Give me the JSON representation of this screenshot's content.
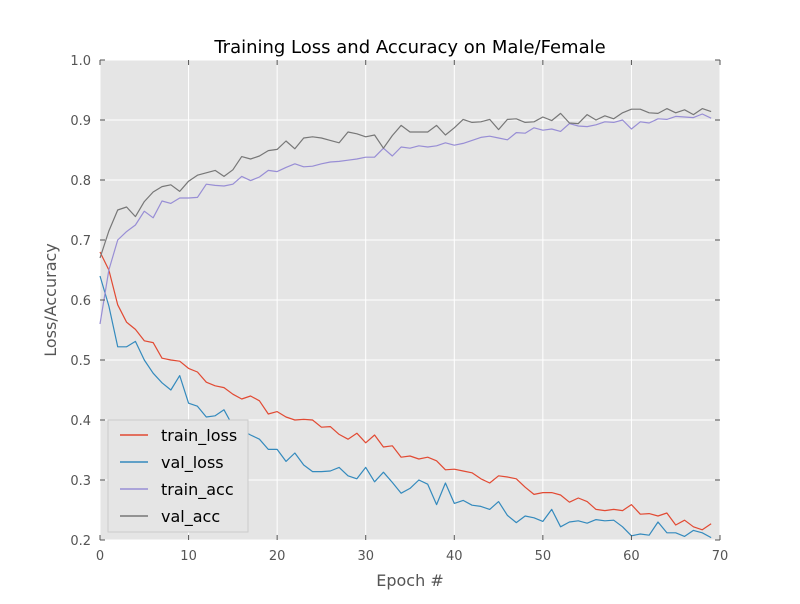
{
  "chart_data": {
    "type": "line",
    "title": "Training Loss and Accuracy on Male/Female",
    "xlabel": "Epoch #",
    "ylabel": "Loss/Accuracy",
    "xlim": [
      0,
      70
    ],
    "ylim": [
      0.2,
      1.0
    ],
    "x_ticks": [
      "0",
      "10",
      "20",
      "30",
      "40",
      "50",
      "60",
      "70"
    ],
    "y_ticks": [
      "0.2",
      "0.3",
      "0.4",
      "0.5",
      "0.6",
      "0.7",
      "0.8",
      "0.9",
      "1.0"
    ],
    "grid": true,
    "legend_position": "lower-left",
    "background": "#e5e5e5",
    "x": [
      0,
      1,
      2,
      3,
      4,
      5,
      6,
      7,
      8,
      9,
      10,
      11,
      12,
      13,
      14,
      15,
      16,
      17,
      18,
      19,
      20,
      21,
      22,
      23,
      24,
      25,
      26,
      27,
      28,
      29,
      30,
      31,
      32,
      33,
      34,
      35,
      36,
      37,
      38,
      39,
      40,
      41,
      42,
      43,
      44,
      45,
      46,
      47,
      48,
      49,
      50,
      51,
      52,
      53,
      54,
      55,
      56,
      57,
      58,
      59,
      60,
      61,
      62,
      63,
      64,
      65,
      66,
      67,
      68,
      69
    ],
    "series": [
      {
        "name": "train_loss",
        "color": "#e24a33",
        "values": [
          0.68,
          0.65,
          0.592,
          0.563,
          0.551,
          0.532,
          0.529,
          0.503,
          0.5,
          0.498,
          0.486,
          0.48,
          0.463,
          0.457,
          0.454,
          0.443,
          0.435,
          0.44,
          0.432,
          0.41,
          0.414,
          0.405,
          0.4,
          0.401,
          0.4,
          0.388,
          0.389,
          0.376,
          0.368,
          0.378,
          0.362,
          0.375,
          0.355,
          0.357,
          0.338,
          0.34,
          0.335,
          0.338,
          0.332,
          0.317,
          0.318,
          0.315,
          0.312,
          0.302,
          0.295,
          0.307,
          0.305,
          0.302,
          0.288,
          0.276,
          0.279,
          0.279,
          0.275,
          0.263,
          0.27,
          0.264,
          0.251,
          0.249,
          0.251,
          0.249,
          0.259,
          0.243,
          0.244,
          0.24,
          0.245,
          0.225,
          0.233,
          0.222,
          0.217,
          0.227
        ]
      },
      {
        "name": "val_loss",
        "color": "#348abd",
        "values": [
          0.64,
          0.59,
          0.522,
          0.522,
          0.531,
          0.5,
          0.478,
          0.462,
          0.45,
          0.474,
          0.428,
          0.423,
          0.405,
          0.407,
          0.417,
          0.39,
          0.383,
          0.375,
          0.368,
          0.351,
          0.351,
          0.331,
          0.345,
          0.325,
          0.314,
          0.314,
          0.315,
          0.321,
          0.307,
          0.302,
          0.321,
          0.297,
          0.313,
          0.296,
          0.278,
          0.286,
          0.3,
          0.293,
          0.259,
          0.295,
          0.261,
          0.266,
          0.258,
          0.256,
          0.251,
          0.264,
          0.241,
          0.229,
          0.24,
          0.237,
          0.231,
          0.251,
          0.222,
          0.23,
          0.232,
          0.228,
          0.234,
          0.232,
          0.233,
          0.222,
          0.207,
          0.21,
          0.208,
          0.23,
          0.212,
          0.212,
          0.206,
          0.216,
          0.212,
          0.204
        ]
      },
      {
        "name": "train_acc",
        "color": "#988ed5",
        "values": [
          0.56,
          0.65,
          0.7,
          0.714,
          0.725,
          0.748,
          0.737,
          0.765,
          0.761,
          0.77,
          0.77,
          0.771,
          0.793,
          0.791,
          0.79,
          0.793,
          0.806,
          0.799,
          0.805,
          0.816,
          0.814,
          0.821,
          0.827,
          0.822,
          0.823,
          0.827,
          0.83,
          0.831,
          0.833,
          0.835,
          0.838,
          0.838,
          0.853,
          0.84,
          0.855,
          0.853,
          0.857,
          0.855,
          0.857,
          0.862,
          0.858,
          0.861,
          0.866,
          0.871,
          0.873,
          0.87,
          0.867,
          0.879,
          0.878,
          0.887,
          0.883,
          0.885,
          0.881,
          0.894,
          0.89,
          0.889,
          0.892,
          0.897,
          0.896,
          0.9,
          0.885,
          0.897,
          0.895,
          0.902,
          0.901,
          0.906,
          0.905,
          0.904,
          0.91,
          0.903
        ]
      },
      {
        "name": "val_acc",
        "color": "#777777",
        "values": [
          0.67,
          0.715,
          0.75,
          0.755,
          0.739,
          0.764,
          0.78,
          0.789,
          0.792,
          0.781,
          0.798,
          0.808,
          0.812,
          0.816,
          0.806,
          0.817,
          0.839,
          0.835,
          0.84,
          0.849,
          0.851,
          0.865,
          0.852,
          0.87,
          0.872,
          0.87,
          0.866,
          0.862,
          0.88,
          0.877,
          0.872,
          0.875,
          0.853,
          0.874,
          0.891,
          0.88,
          0.88,
          0.88,
          0.891,
          0.875,
          0.887,
          0.901,
          0.896,
          0.897,
          0.901,
          0.884,
          0.901,
          0.902,
          0.896,
          0.897,
          0.905,
          0.899,
          0.911,
          0.895,
          0.894,
          0.909,
          0.9,
          0.907,
          0.902,
          0.912,
          0.918,
          0.918,
          0.912,
          0.911,
          0.919,
          0.912,
          0.917,
          0.909,
          0.919,
          0.914
        ]
      }
    ]
  }
}
